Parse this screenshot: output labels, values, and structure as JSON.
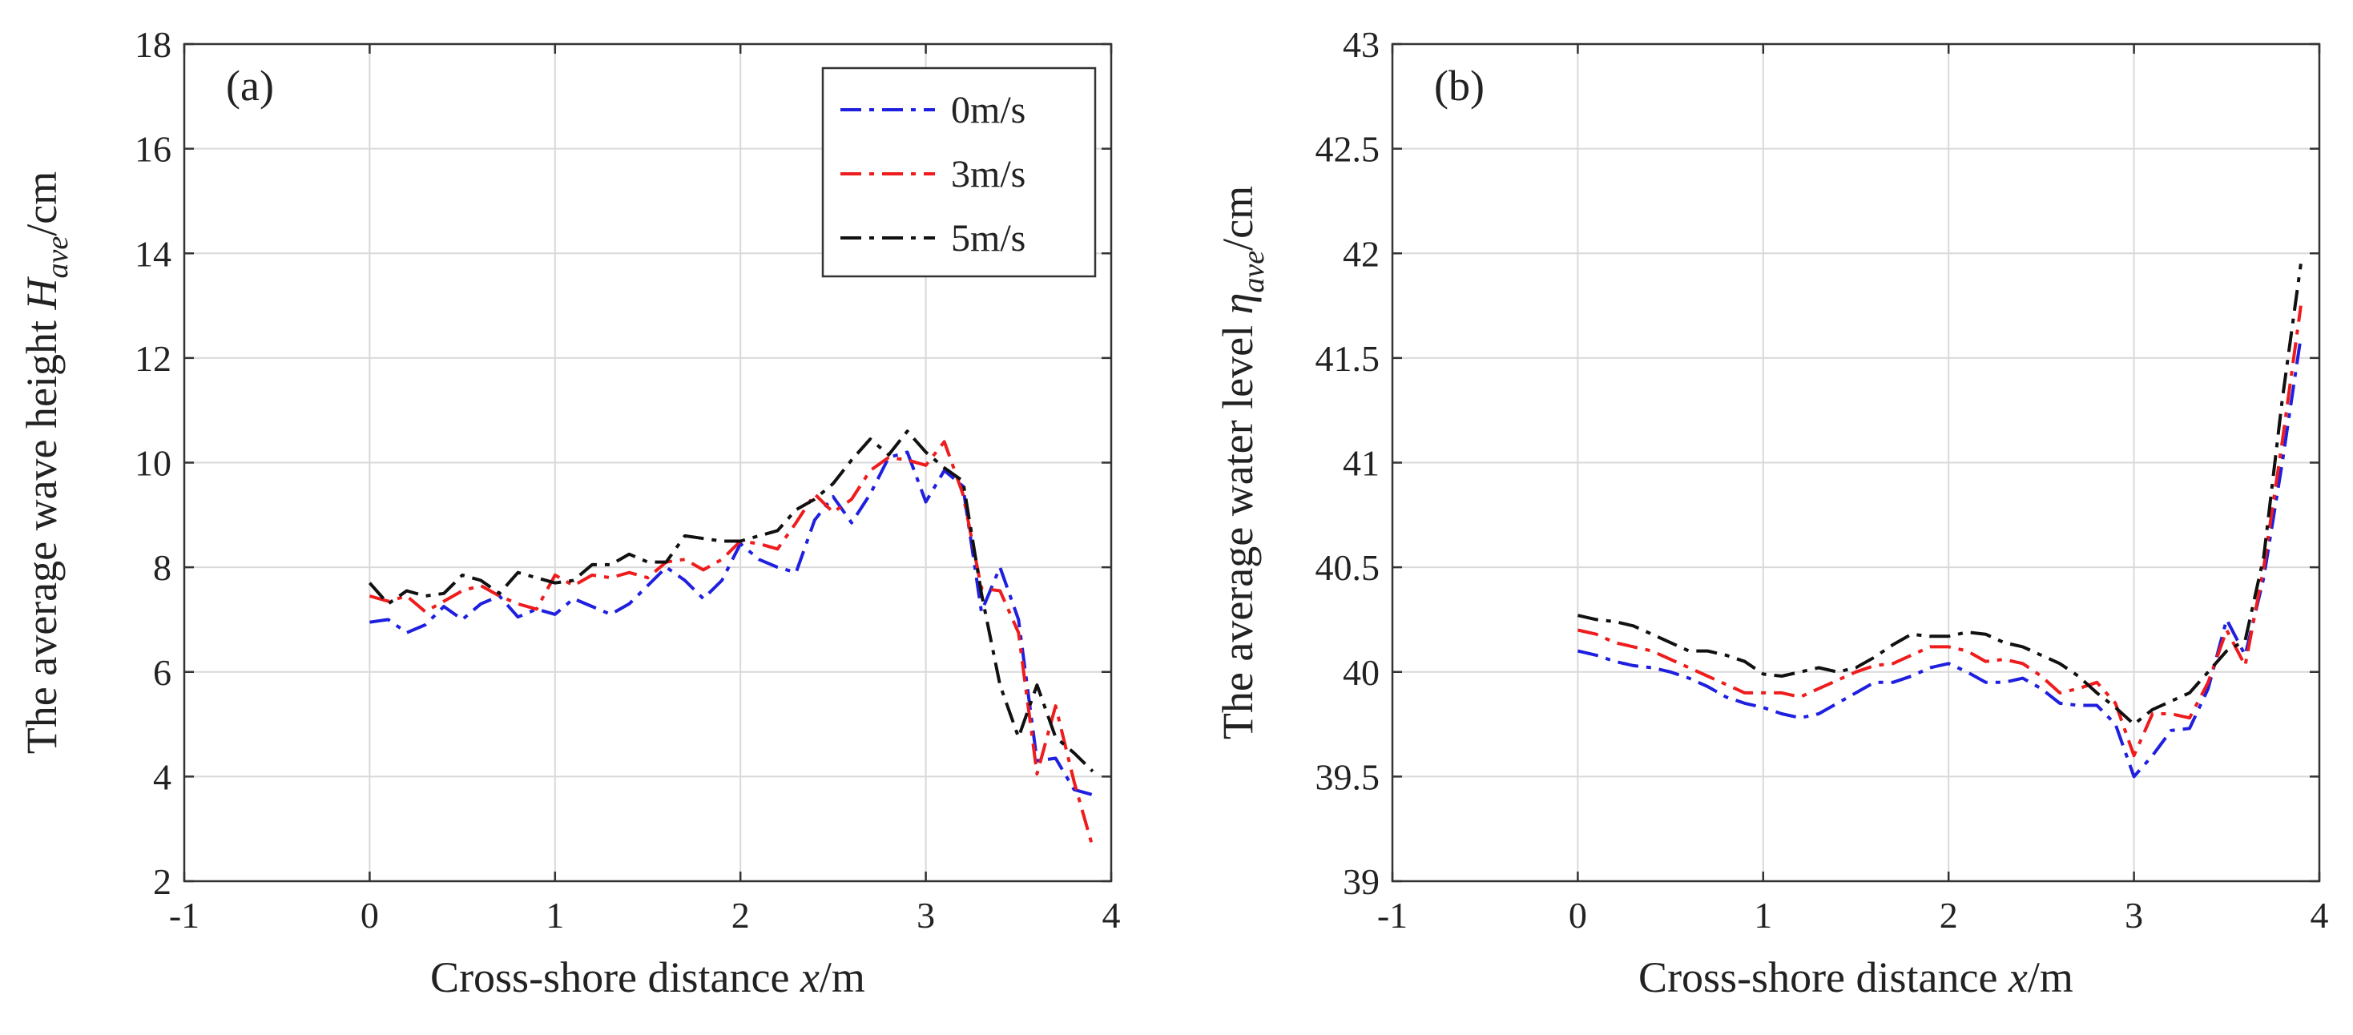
{
  "chart_data": [
    {
      "type": "line",
      "panel_label": "(a)",
      "xlabel": {
        "prefix": "Cross-shore distance  ",
        "var": "x",
        "suffix": "/m"
      },
      "ylabel": {
        "prefix": "The average wave height ",
        "var": "H",
        "sub": "ave",
        "suffix": "/cm"
      },
      "xlim": [
        -1,
        4
      ],
      "ylim": [
        2,
        18
      ],
      "xticks": [
        -1,
        0,
        1,
        2,
        3,
        4
      ],
      "yticks": [
        2,
        4,
        6,
        8,
        10,
        12,
        14,
        16,
        18
      ],
      "xtick_labels": [
        "-1",
        "0",
        "1",
        "2",
        "3",
        "4"
      ],
      "ytick_labels": [
        "2",
        "4",
        "6",
        "8",
        "10",
        "12",
        "14",
        "16",
        "18"
      ],
      "grid": true,
      "legend": {
        "position": "top-right",
        "entries": [
          "0m/s",
          "3m/s",
          "5m/s"
        ]
      },
      "series": [
        {
          "name": "0m/s",
          "color": "#1f1fe0",
          "x": [
            0,
            0.1,
            0.2,
            0.3,
            0.4,
            0.5,
            0.6,
            0.7,
            0.8,
            0.9,
            1.0,
            1.1,
            1.2,
            1.3,
            1.4,
            1.5,
            1.6,
            1.7,
            1.8,
            1.9,
            2.0,
            2.1,
            2.2,
            2.3,
            2.4,
            2.5,
            2.6,
            2.7,
            2.8,
            2.9,
            3.0,
            3.1,
            3.2,
            3.3,
            3.4,
            3.5,
            3.6,
            3.7,
            3.8,
            3.9
          ],
          "y": [
            6.95,
            7.0,
            6.75,
            6.9,
            7.25,
            7.0,
            7.3,
            7.45,
            7.05,
            7.2,
            7.1,
            7.4,
            7.25,
            7.1,
            7.3,
            7.65,
            8.0,
            7.75,
            7.4,
            7.75,
            8.45,
            8.15,
            8.0,
            7.9,
            8.9,
            9.35,
            8.85,
            9.4,
            10.1,
            10.2,
            9.25,
            9.85,
            9.55,
            7.15,
            8.0,
            7.0,
            4.3,
            4.35,
            3.75,
            3.65
          ]
        },
        {
          "name": "3m/s",
          "color": "#ee1c1c",
          "x": [
            0,
            0.1,
            0.2,
            0.3,
            0.4,
            0.5,
            0.6,
            0.7,
            0.8,
            0.9,
            1.0,
            1.1,
            1.2,
            1.3,
            1.4,
            1.5,
            1.6,
            1.7,
            1.8,
            1.9,
            2.0,
            2.1,
            2.2,
            2.3,
            2.4,
            2.5,
            2.6,
            2.7,
            2.8,
            2.9,
            3.0,
            3.1,
            3.2,
            3.3,
            3.4,
            3.5,
            3.6,
            3.7,
            3.8,
            3.9
          ],
          "y": [
            7.45,
            7.35,
            7.45,
            7.15,
            7.35,
            7.55,
            7.65,
            7.45,
            7.3,
            7.2,
            7.85,
            7.65,
            7.85,
            7.8,
            7.9,
            7.8,
            8.1,
            8.15,
            7.95,
            8.15,
            8.5,
            8.45,
            8.35,
            8.85,
            9.4,
            9.05,
            9.3,
            9.85,
            10.1,
            10.05,
            9.95,
            10.4,
            9.4,
            7.6,
            7.55,
            6.75,
            4.05,
            5.35,
            3.9,
            2.65
          ]
        },
        {
          "name": "5m/s",
          "color": "#111111",
          "x": [
            0,
            0.1,
            0.2,
            0.3,
            0.4,
            0.5,
            0.6,
            0.7,
            0.8,
            0.9,
            1.0,
            1.1,
            1.2,
            1.3,
            1.4,
            1.5,
            1.6,
            1.7,
            1.8,
            1.9,
            2.0,
            2.1,
            2.2,
            2.3,
            2.4,
            2.5,
            2.6,
            2.7,
            2.8,
            2.9,
            3.0,
            3.1,
            3.2,
            3.3,
            3.4,
            3.5,
            3.6,
            3.7,
            3.8,
            3.9
          ],
          "y": [
            7.7,
            7.3,
            7.55,
            7.45,
            7.5,
            7.85,
            7.75,
            7.5,
            7.9,
            7.8,
            7.7,
            7.75,
            8.05,
            8.05,
            8.25,
            8.1,
            8.1,
            8.6,
            8.55,
            8.5,
            8.5,
            8.6,
            8.7,
            9.1,
            9.3,
            9.6,
            10.05,
            10.45,
            10.15,
            10.6,
            10.2,
            9.9,
            9.65,
            7.5,
            5.75,
            4.75,
            5.75,
            4.75,
            4.45,
            4.1
          ]
        }
      ]
    },
    {
      "type": "line",
      "panel_label": "(b)",
      "xlabel": {
        "prefix": "Cross-shore distance ",
        "var": "x",
        "suffix": "/m"
      },
      "ylabel": {
        "prefix": "The average water level ",
        "var": "η",
        "sub": "ave",
        "suffix": "/cm"
      },
      "xlim": [
        -1,
        4
      ],
      "ylim": [
        39,
        43
      ],
      "xticks": [
        -1,
        0,
        1,
        2,
        3,
        4
      ],
      "yticks": [
        39,
        39.5,
        40,
        40.5,
        41,
        41.5,
        42,
        42.5,
        43
      ],
      "xtick_labels": [
        "-1",
        "0",
        "1",
        "2",
        "3",
        "4"
      ],
      "ytick_labels": [
        "39",
        "39.5",
        "40",
        "40.5",
        "41",
        "41.5",
        "42",
        "42.5",
        "43"
      ],
      "grid": true,
      "series": [
        {
          "name": "0m/s",
          "color": "#1f1fe0",
          "x": [
            0,
            0.1,
            0.2,
            0.3,
            0.4,
            0.5,
            0.6,
            0.7,
            0.8,
            0.9,
            1.0,
            1.1,
            1.2,
            1.3,
            1.4,
            1.5,
            1.6,
            1.7,
            1.8,
            1.9,
            2.0,
            2.1,
            2.2,
            2.3,
            2.4,
            2.5,
            2.6,
            2.7,
            2.8,
            2.9,
            3.0,
            3.1,
            3.2,
            3.3,
            3.4,
            3.5,
            3.6,
            3.7,
            3.8,
            3.9
          ],
          "y": [
            40.1,
            40.08,
            40.05,
            40.03,
            40.02,
            40.0,
            39.97,
            39.93,
            39.88,
            39.85,
            39.83,
            39.8,
            39.78,
            39.8,
            39.85,
            39.9,
            39.95,
            39.95,
            39.98,
            40.02,
            40.04,
            40.0,
            39.95,
            39.95,
            39.97,
            39.92,
            39.85,
            39.84,
            39.84,
            39.75,
            39.5,
            39.6,
            39.72,
            39.73,
            39.92,
            40.25,
            40.08,
            40.45,
            41.0,
            41.6
          ]
        },
        {
          "name": "3m/s",
          "color": "#ee1c1c",
          "x": [
            0,
            0.1,
            0.2,
            0.3,
            0.4,
            0.5,
            0.6,
            0.7,
            0.8,
            0.9,
            1.0,
            1.1,
            1.2,
            1.3,
            1.4,
            1.5,
            1.6,
            1.7,
            1.8,
            1.9,
            2.0,
            2.1,
            2.2,
            2.3,
            2.4,
            2.5,
            2.6,
            2.7,
            2.8,
            2.9,
            3.0,
            3.1,
            3.2,
            3.3,
            3.4,
            3.5,
            3.6,
            3.7,
            3.8,
            3.9
          ],
          "y": [
            40.2,
            40.18,
            40.14,
            40.12,
            40.1,
            40.06,
            40.02,
            39.98,
            39.94,
            39.9,
            39.9,
            39.9,
            39.88,
            39.92,
            39.96,
            40.0,
            40.03,
            40.04,
            40.08,
            40.12,
            40.12,
            40.1,
            40.05,
            40.06,
            40.04,
            39.98,
            39.9,
            39.92,
            39.95,
            39.85,
            39.6,
            39.8,
            39.8,
            39.78,
            39.95,
            40.2,
            40.03,
            40.5,
            41.1,
            41.75
          ]
        },
        {
          "name": "5m/s",
          "color": "#111111",
          "x": [
            0,
            0.1,
            0.2,
            0.3,
            0.4,
            0.5,
            0.6,
            0.7,
            0.8,
            0.9,
            1.0,
            1.1,
            1.2,
            1.3,
            1.4,
            1.5,
            1.6,
            1.7,
            1.8,
            1.9,
            2.0,
            2.1,
            2.2,
            2.3,
            2.4,
            2.5,
            2.6,
            2.7,
            2.8,
            2.9,
            3.0,
            3.1,
            3.2,
            3.3,
            3.4,
            3.5,
            3.6,
            3.7,
            3.8,
            3.9
          ],
          "y": [
            40.27,
            40.25,
            40.24,
            40.22,
            40.18,
            40.14,
            40.1,
            40.1,
            40.08,
            40.05,
            39.99,
            39.98,
            40.0,
            40.02,
            40.0,
            40.02,
            40.07,
            40.13,
            40.18,
            40.17,
            40.17,
            40.19,
            40.18,
            40.14,
            40.12,
            40.08,
            40.04,
            39.98,
            39.9,
            39.83,
            39.75,
            39.82,
            39.86,
            39.9,
            40.0,
            40.1,
            40.15,
            40.55,
            41.3,
            41.95
          ]
        }
      ]
    }
  ]
}
